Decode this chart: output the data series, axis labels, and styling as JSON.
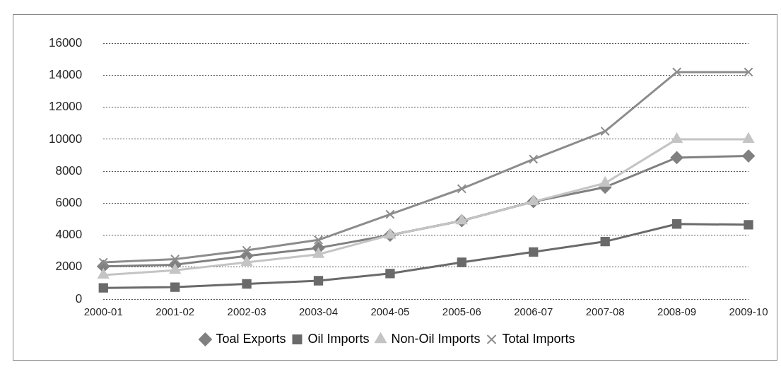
{
  "chart_data": {
    "type": "line",
    "categories": [
      "2000-01",
      "2001-02",
      "2002-03",
      "2003-04",
      "2004-05",
      "2005-06",
      "2006-07",
      "2007-08",
      "2008-09",
      "2009-10"
    ],
    "series": [
      {
        "name": "Toal Exports",
        "color": "#808080",
        "marker": "diamond",
        "values": [
          2050,
          2150,
          2700,
          3200,
          4000,
          4900,
          6100,
          7000,
          8850,
          8950
        ]
      },
      {
        "name": "Oil Imports",
        "color": "#6a6a6a",
        "marker": "square",
        "values": [
          700,
          750,
          950,
          1150,
          1600,
          2300,
          2950,
          3600,
          4700,
          4650
        ]
      },
      {
        "name": "Non-Oil Imports",
        "color": "#c4c4c4",
        "marker": "triangle",
        "values": [
          1500,
          1800,
          2300,
          2800,
          4000,
          4900,
          6100,
          7250,
          10000,
          10000
        ]
      },
      {
        "name": "Total Imports",
        "color": "#8c8c8c",
        "marker": "cross",
        "values": [
          2300,
          2500,
          3050,
          3700,
          5300,
          6900,
          8750,
          10500,
          14200,
          14200
        ]
      }
    ],
    "ylim": [
      0,
      16000
    ],
    "yticks": [
      0,
      2000,
      4000,
      6000,
      8000,
      10000,
      12000,
      14000,
      16000
    ],
    "grid": "y",
    "legend": "bottom",
    "line_style": "solid"
  }
}
